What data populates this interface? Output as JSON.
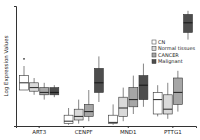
{
  "chart_data": {
    "type": "box",
    "ylabel": "Log Expression Values",
    "categories": [
      "ART3",
      "CENPF",
      "MND1",
      "PTTG1"
    ],
    "ylim": [
      0,
      10
    ],
    "tick_labels": "x",
    "legend": "right",
    "series": [
      {
        "name": "CN",
        "color": "#ffffff",
        "min": [
          3.0,
          0.1,
          0.1,
          0.8
        ],
        "q1": [
          3.0,
          0.2,
          0.2,
          1.0
        ],
        "median": [
          3.6,
          0.4,
          0.3,
          2.2
        ],
        "q3": [
          4.2,
          0.9,
          0.9,
          2.8
        ],
        "max": [
          5.0,
          1.5,
          1.8,
          3.4
        ],
        "outliers": [
          [
            5.6
          ],
          [],
          [],
          []
        ]
      },
      {
        "name": "Normal tissues",
        "color": "#d9d9d9",
        "min": [
          2.6,
          0.2,
          0.4,
          0.6
        ],
        "q1": [
          2.9,
          0.5,
          0.8,
          1.0
        ],
        "median": [
          3.2,
          0.8,
          1.5,
          1.4
        ],
        "q3": [
          3.6,
          1.4,
          2.4,
          2.6
        ],
        "max": [
          4.0,
          2.2,
          3.2,
          3.6
        ],
        "outliers": [
          [],
          [],
          [],
          []
        ]
      },
      {
        "name": "CANCER",
        "color": "#a6a6a6",
        "min": [
          2.2,
          0.4,
          1.0,
          1.2
        ],
        "q1": [
          2.6,
          0.8,
          1.6,
          1.8
        ],
        "median": [
          2.8,
          1.2,
          2.2,
          2.8
        ],
        "q3": [
          3.2,
          1.8,
          3.2,
          4.0
        ],
        "max": [
          3.6,
          3.0,
          4.2,
          4.6
        ],
        "outliers": [
          [],
          [],
          [],
          []
        ]
      },
      {
        "name": "Malignant",
        "color": "#4d4d4d",
        "min": [
          2.4,
          2.0,
          1.6,
          7.2
        ],
        "q1": [
          2.6,
          2.8,
          2.2,
          7.8
        ],
        "median": [
          2.8,
          3.6,
          3.4,
          8.6
        ],
        "q3": [
          3.2,
          4.8,
          4.2,
          9.3
        ],
        "max": [
          3.4,
          5.8,
          5.2,
          9.6
        ],
        "outliers": [
          [],
          [],
          [],
          []
        ]
      }
    ]
  }
}
